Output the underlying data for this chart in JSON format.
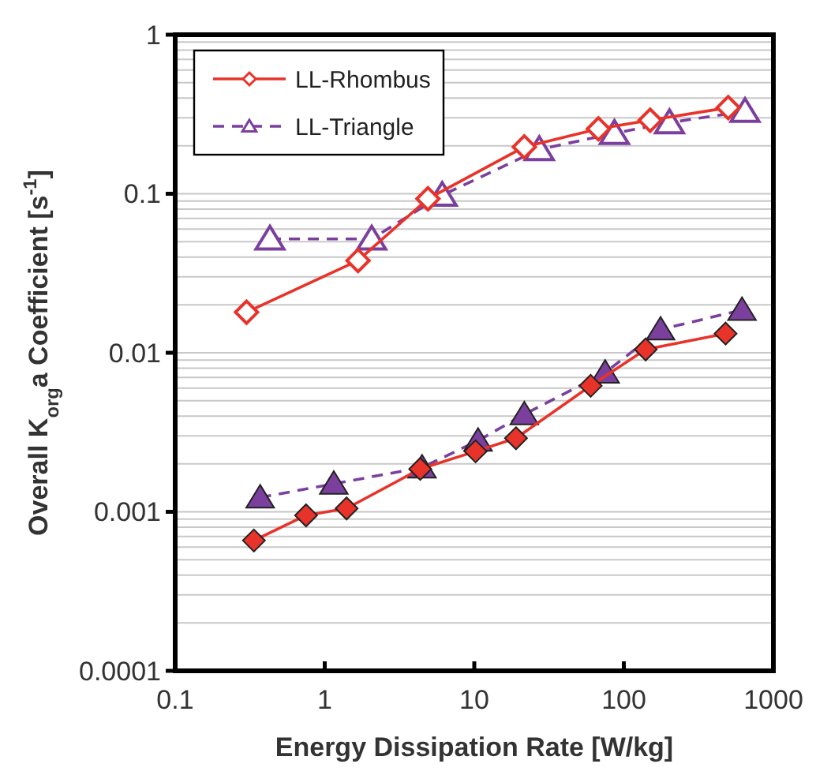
{
  "chart_data": {
    "type": "line",
    "xlabel": "Energy Dissipation Rate [W/kg]",
    "ylabel": "Overall K$_{org}$a Coefficient [s$^{-1}$]",
    "log": "xy",
    "xlim": [
      0.1,
      1000
    ],
    "xticks": [
      0.1,
      1,
      10,
      100,
      1000
    ],
    "ylim": [
      0.0001,
      1
    ],
    "yticks": [
      0.0001,
      {
        "value": 0.0002,
        "label": null
      },
      {
        "value": 0.0003,
        "label": null
      },
      {
        "value": 0.0004,
        "label": null
      },
      {
        "value": 0.0005,
        "label": null
      },
      {
        "value": 0.0006,
        "label": null
      },
      {
        "value": 0.0007,
        "label": null
      },
      {
        "value": 0.0008,
        "label": null
      },
      {
        "value": 0.0009,
        "label": null
      },
      0.001,
      {
        "value": 0.002,
        "label": null
      },
      {
        "value": 0.003,
        "label": null
      },
      {
        "value": 0.004,
        "label": null
      },
      {
        "value": 0.005,
        "label": null
      },
      {
        "value": 0.006,
        "label": null
      },
      {
        "value": 0.007,
        "label": null
      },
      {
        "value": 0.008,
        "label": null
      },
      {
        "value": 0.009,
        "label": null
      },
      0.01,
      {
        "value": 0.02,
        "label": null
      },
      {
        "value": 0.03,
        "label": null
      },
      {
        "value": 0.04,
        "label": null
      },
      {
        "value": 0.05,
        "label": null
      },
      {
        "value": 0.06,
        "label": null
      },
      {
        "value": 0.07,
        "label": null
      },
      {
        "value": 0.08,
        "label": null
      },
      {
        "value": 0.09,
        "label": null
      },
      0.1,
      {
        "value": 0.2,
        "label": null
      },
      {
        "value": 0.3,
        "label": null
      },
      {
        "value": 0.4,
        "label": null
      },
      {
        "value": 0.5,
        "label": null
      },
      {
        "value": 0.6,
        "label": null
      },
      {
        "value": 0.7,
        "label": null
      },
      {
        "value": 0.8,
        "label": null
      },
      {
        "value": 0.9,
        "label": null
      },
      1
    ],
    "grid": "y",
    "legend": "top left",
    "series": [
      {
        "name": "LL-Rhombus",
        "color": "#e8332a",
        "marker": "diamond",
        "line_style": "solid",
        "x": [
          0.3,
          1.67,
          4.9,
          21.6,
          67.6,
          150,
          499
        ],
        "values": [
          0.018,
          0.038,
          0.093,
          0.197,
          0.256,
          0.29,
          0.348
        ]
      },
      {
        "name": "LL-Triangle",
        "color": "#7b3f9e",
        "marker": "triangle",
        "line_style": "dashed",
        "x": [
          0.43,
          2.06,
          6.1,
          27.2,
          86.5,
          202,
          646
        ],
        "values": [
          0.052,
          0.052,
          0.098,
          0.19,
          0.24,
          0.28,
          0.33
        ]
      },
      {
        "color": "#e8332a",
        "marker": "diamond",
        "line_style": "solid",
        "x": [
          0.336,
          0.75,
          1.4,
          4.35,
          10.2,
          19,
          60,
          140,
          479
        ],
        "values": [
          0.00066,
          0.00095,
          0.00105,
          0.00186,
          0.0024,
          0.0029,
          0.0062,
          0.0105,
          0.0132
        ]
      },
      {
        "color": "#7b3f9e",
        "marker": "triangle",
        "line_style": "dashed",
        "x": [
          0.37,
          1.15,
          4.47,
          10.6,
          21.6,
          75,
          176,
          617
        ],
        "values": [
          0.00123,
          0.0015,
          0.0019,
          0.0028,
          0.0041,
          0.0075,
          0.014,
          0.0186
        ]
      }
    ]
  }
}
